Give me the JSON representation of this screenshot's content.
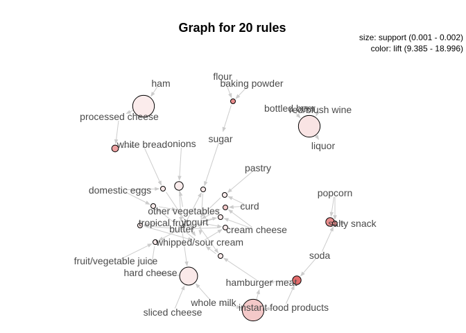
{
  "title": "Graph for 20 rules",
  "legend": {
    "size": "size: support (0.001 - 0.002)",
    "color": "color: lift (9.385 - 18.996)"
  },
  "colors": {
    "edge": "#cccccc",
    "label": "#4a4a4a",
    "node_stroke": "#000000",
    "low_lift": "#fbecec",
    "high_lift": "#e36c6c"
  },
  "items": [
    "ham",
    "flour",
    "baking powder",
    "bottled beer",
    "red/blush wine",
    "processed cheese",
    "white bread",
    "onions",
    "sugar",
    "liquor",
    "pastry",
    "domestic eggs",
    "popcorn",
    "curd",
    "other vegetables",
    "tropical fruit",
    "yogurt",
    "salty snack",
    "butter",
    "cream cheese",
    "whipped/sour cream",
    "soda",
    "fruit/vegetable juice",
    "hard cheese",
    "hamburger meat",
    "whole milk",
    "instant food products",
    "sliced cheese"
  ],
  "rules": [
    {
      "id": "r1",
      "lhs": [
        "ham"
      ],
      "rhs": "processed cheese",
      "support": 0.0019,
      "lift": 9.4
    },
    {
      "id": "r2",
      "lhs": [
        "flour",
        "baking powder"
      ],
      "rhs": "sugar",
      "support": 0.001,
      "lift": 16.5
    },
    {
      "id": "r3",
      "lhs": [
        "bottled beer",
        "red/blush wine"
      ],
      "rhs": "liquor",
      "support": 0.0019,
      "lift": 10.0
    },
    {
      "id": "r4",
      "lhs": [
        "processed cheese"
      ],
      "rhs": "white bread",
      "support": 0.0011,
      "lift": 15.0
    },
    {
      "id": "r5",
      "lhs": [
        "white bread",
        "domestic eggs"
      ],
      "rhs": "whipped/sour cream",
      "support": 0.001,
      "lift": 9.5
    },
    {
      "id": "r6",
      "lhs": [
        "onions",
        "other vegetables"
      ],
      "rhs": "butter",
      "support": 0.0012,
      "lift": 9.4
    },
    {
      "id": "r7",
      "lhs": [
        "sugar",
        "butter"
      ],
      "rhs": "whipped/sour cream",
      "support": 0.001,
      "lift": 9.5
    },
    {
      "id": "r8",
      "lhs": [
        "pastry",
        "curd"
      ],
      "rhs": "yogurt",
      "support": 0.001,
      "lift": 9.4
    },
    {
      "id": "r9",
      "lhs": [
        "domestic eggs",
        "whipped/sour cream"
      ],
      "rhs": "other vegetables",
      "support": 0.001,
      "lift": 9.4
    },
    {
      "id": "r10",
      "lhs": [
        "curd",
        "cream cheese"
      ],
      "rhs": "yogurt",
      "support": 0.001,
      "lift": 12.0
    },
    {
      "id": "r11",
      "lhs": [
        "tropical fruit",
        "butter"
      ],
      "rhs": "whipped/sour cream",
      "support": 0.001,
      "lift": 9.5
    },
    {
      "id": "r12",
      "lhs": [
        "cream cheese",
        "yogurt"
      ],
      "rhs": "butter",
      "support": 0.001,
      "lift": 9.5
    },
    {
      "id": "r13",
      "lhs": [
        "fruit/vegetable juice",
        "yogurt"
      ],
      "rhs": "hard cheese",
      "support": 0.001,
      "lift": 9.5
    },
    {
      "id": "r14",
      "lhs": [
        "whipped/sour cream",
        "yogurt"
      ],
      "rhs": "butter",
      "support": 0.001,
      "lift": 9.5
    },
    {
      "id": "r15",
      "lhs": [
        "hamburger meat",
        "yogurt"
      ],
      "rhs": "whipped/sour cream",
      "support": 0.001,
      "lift": 9.5
    },
    {
      "id": "r16",
      "lhs": [
        "whole milk",
        "sliced cheese",
        "butter"
      ],
      "rhs": "hard cheese",
      "support": 0.0017,
      "lift": 9.6
    },
    {
      "id": "r17",
      "lhs": [
        "popcorn"
      ],
      "rhs": "salty snack",
      "support": 0.0012,
      "lift": 16.5
    },
    {
      "id": "r18",
      "lhs": [
        "soda",
        "popcorn"
      ],
      "rhs": "salty snack",
      "support": 0.001,
      "lift": 16.5
    },
    {
      "id": "r19",
      "lhs": [
        "instant food products",
        "soda"
      ],
      "rhs": "hamburger meat",
      "support": 0.0012,
      "lift": 19.0
    },
    {
      "id": "r20",
      "lhs": [
        "whole milk",
        "instant food products"
      ],
      "rhs": "hamburger meat",
      "support": 0.0019,
      "lift": 12.0
    }
  ]
}
